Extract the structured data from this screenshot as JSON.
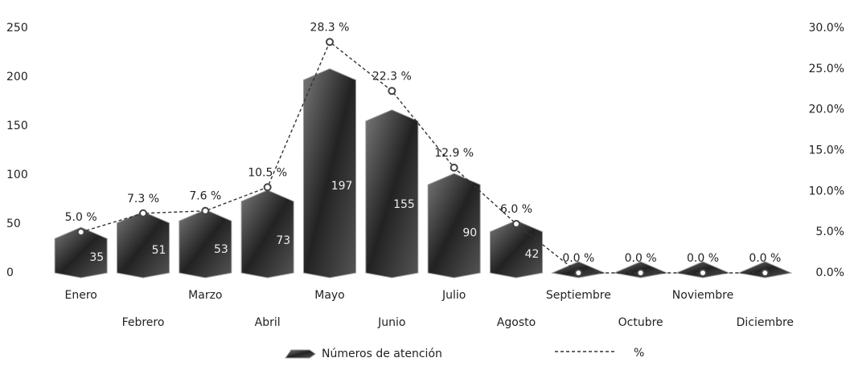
{
  "chart_data": {
    "type": "bar",
    "categories": [
      "Enero",
      "Febrero",
      "Marzo",
      "Abril",
      "Mayo",
      "Junio",
      "Julio",
      "Agosto",
      "Septiembre",
      "Octubre",
      "Noviembre",
      "Diciembre"
    ],
    "series": [
      {
        "name": "Números de atención",
        "color": "#3d3d3d",
        "values": [
          35,
          51,
          53,
          73,
          197,
          155,
          90,
          42,
          0,
          0,
          0,
          0
        ]
      },
      {
        "name": "%",
        "type": "line",
        "axis": "y2",
        "color": "#333333",
        "values": [
          5.0,
          7.3,
          7.6,
          10.5,
          28.3,
          22.3,
          12.9,
          6.0,
          0.0,
          0.0,
          0.0,
          0.0
        ],
        "value_labels": [
          "5.0 %",
          "7.3 %",
          "7.6 %",
          "10.5 %",
          "28.3 %",
          "22.3 %",
          "12.9 %",
          "6.0 %",
          "0.0 %",
          "0.0 %",
          "0.0 %",
          "0.0 %"
        ]
      }
    ],
    "ylim": [
      0,
      250
    ],
    "yticks": [
      0,
      50,
      100,
      150,
      200,
      250
    ],
    "y2lim": [
      0,
      30
    ],
    "y2ticks": [
      {
        "value": 0,
        "label": "0.0%"
      },
      {
        "value": 5,
        "label": "5.0%"
      },
      {
        "value": 10,
        "label": "10.0%"
      },
      {
        "value": 15,
        "label": "15.0%"
      },
      {
        "value": 20,
        "label": "20.0%"
      },
      {
        "value": 25,
        "label": "25.0%"
      },
      {
        "value": 30,
        "label": "30.0%"
      }
    ],
    "grid": false,
    "legend": "bottom"
  }
}
